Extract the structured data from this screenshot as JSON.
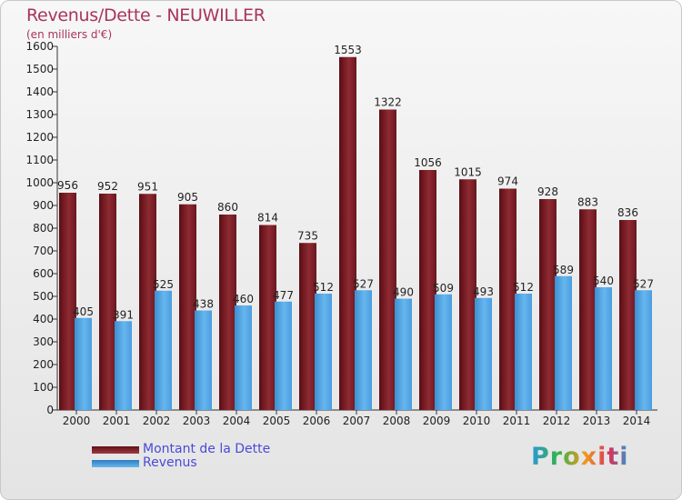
{
  "chart_data": {
    "type": "bar",
    "title": "Revenus/Dette - NEUWILLER",
    "subtitle": "(en milliers d'€)",
    "categories": [
      "2000",
      "2001",
      "2002",
      "2003",
      "2004",
      "2005",
      "2006",
      "2007",
      "2008",
      "2009",
      "2010",
      "2011",
      "2012",
      "2013",
      "2014"
    ],
    "series": [
      {
        "name": "Montant de la Dette",
        "values": [
          956,
          952,
          951,
          905,
          860,
          814,
          735,
          1553,
          1322,
          1056,
          1015,
          974,
          928,
          883,
          836
        ]
      },
      {
        "name": "Revenus",
        "values": [
          405,
          391,
          525,
          438,
          460,
          477,
          512,
          527,
          490,
          509,
          493,
          512,
          589,
          540,
          527
        ]
      }
    ],
    "ylim": [
      0,
      1600
    ],
    "ytick_step": 100,
    "grid": false,
    "legend_position": "bottom-left",
    "colors": {
      "dette": "#7a1c24",
      "revenus": "#4aa3e0"
    }
  },
  "branding": {
    "logo": "Proxiti"
  }
}
